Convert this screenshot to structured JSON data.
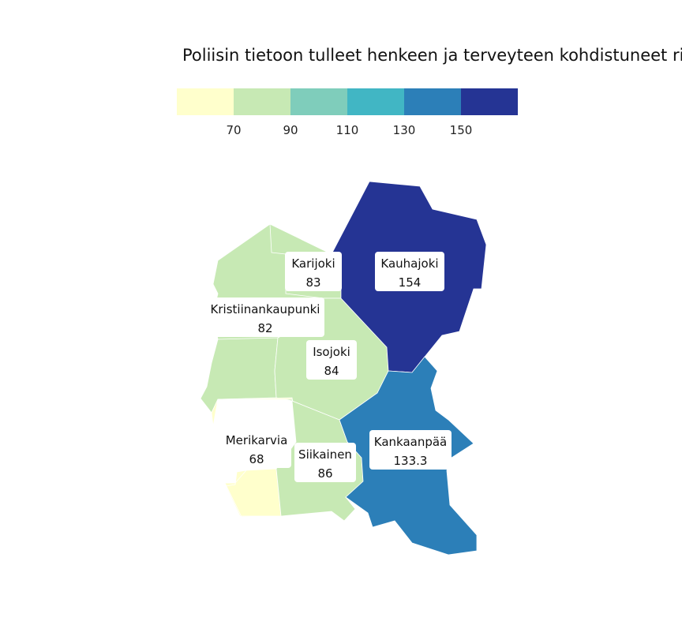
{
  "title": "Poliisin tietoon tulleet henkeen ja terveyteen kohdistuneet ri",
  "legend": {
    "colors": [
      "#ffffcc",
      "#c7e9b4",
      "#7fcdbb",
      "#41b6c4",
      "#2c7fb8",
      "#253494"
    ],
    "ticks": [
      "70",
      "90",
      "110",
      "130",
      "150"
    ]
  },
  "regions": [
    {
      "id": "kauhajoki",
      "name": "Kauhajoki",
      "value": "154",
      "color": "#253494"
    },
    {
      "id": "karijoki",
      "name": "Karijoki",
      "value": "83",
      "color": "#c7e9b4"
    },
    {
      "id": "kristiinankaupunki",
      "name": "Kristiinankaupunki",
      "value": "82",
      "color": "#c7e9b4"
    },
    {
      "id": "isojoki",
      "name": "Isojoki",
      "value": "84",
      "color": "#c7e9b4"
    },
    {
      "id": "merikarvia",
      "name": "Merikarvia",
      "value": "68",
      "color": "#ffffcc"
    },
    {
      "id": "siikainen",
      "name": "Siikainen",
      "value": "86",
      "color": "#c7e9b4"
    },
    {
      "id": "kankaanpaa",
      "name": "Kankaanpää",
      "value": "133.3",
      "color": "#2c7fb8"
    }
  ]
}
